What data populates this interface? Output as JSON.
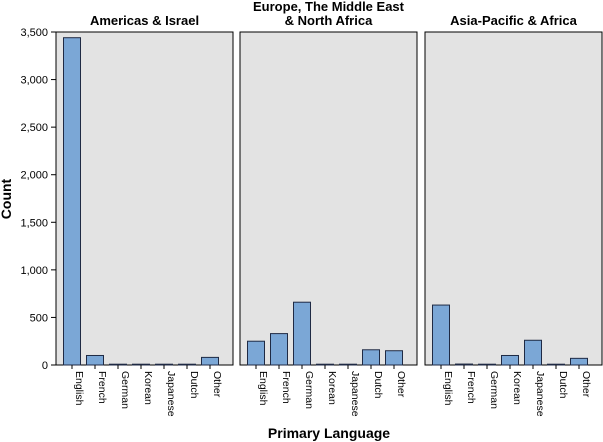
{
  "chart_data": {
    "type": "bar",
    "ylabel": "Count",
    "xlabel": "Primary Language",
    "ylim": [
      0,
      3500
    ],
    "yticks": [
      0,
      500,
      1000,
      1500,
      2000,
      2500,
      3000,
      3500
    ],
    "ytick_labels": [
      "0",
      "500",
      "1,000",
      "1,500",
      "2,000",
      "2,500",
      "3,000",
      "3,500"
    ],
    "categories": [
      "English",
      "French",
      "German",
      "Korean",
      "Japanese",
      "Dutch",
      "Other"
    ],
    "grid": false,
    "colors": {
      "bar": "#7ba7d6",
      "bar_stroke": "#1f2a44",
      "panel_bg": "#e3e3e3"
    },
    "panels": [
      {
        "title": [
          "Americas & Israel"
        ],
        "values": [
          3440,
          100,
          2,
          8,
          3,
          5,
          80
        ]
      },
      {
        "title": [
          "Europe, The Middle East",
          "& North Africa"
        ],
        "values": [
          250,
          330,
          660,
          2,
          3,
          160,
          150
        ]
      },
      {
        "title": [
          "Asia-Pacific & Africa"
        ],
        "values": [
          630,
          10,
          2,
          100,
          260,
          2,
          70
        ]
      }
    ]
  }
}
